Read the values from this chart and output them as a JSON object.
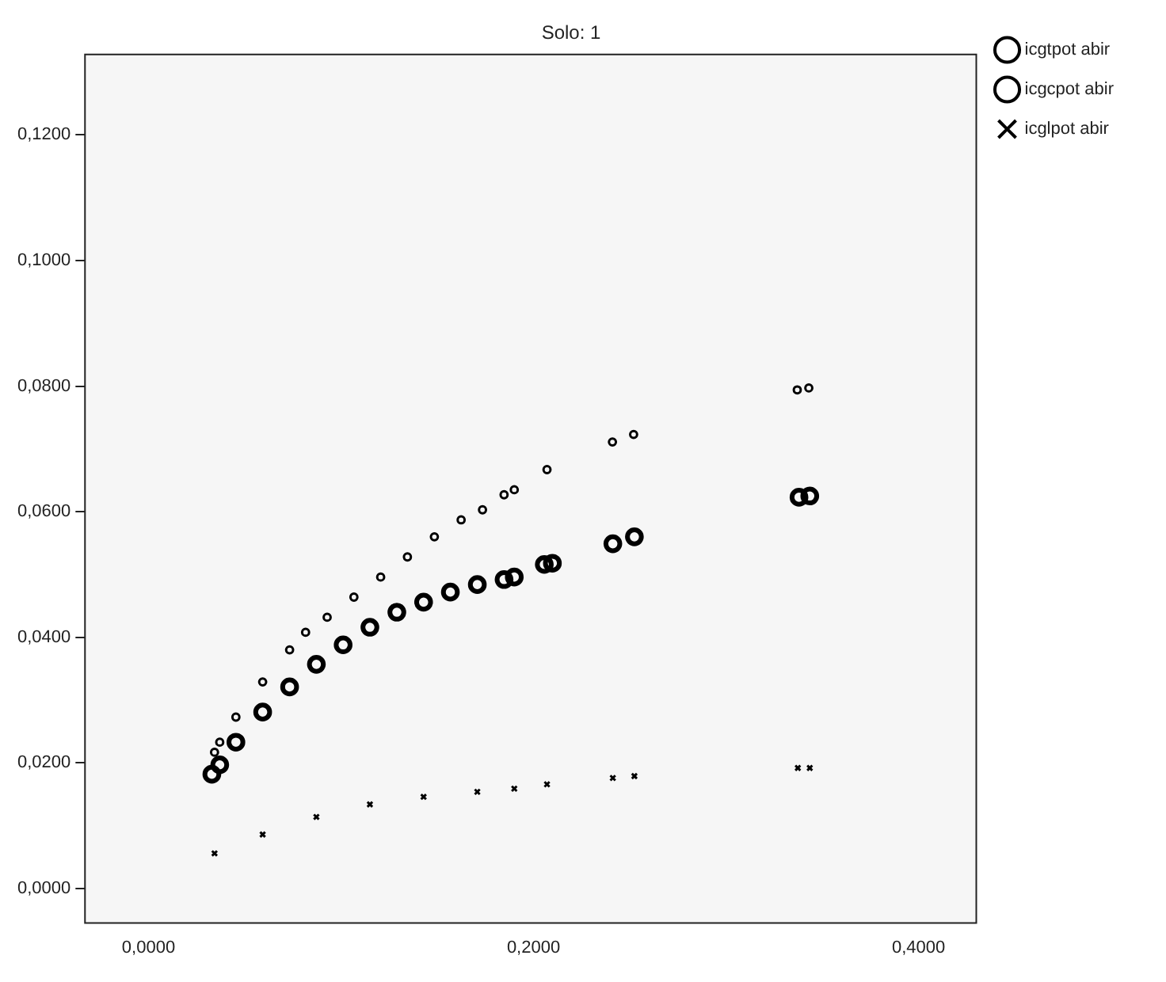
{
  "chart_data": {
    "type": "scatter",
    "title": "Solo: 1",
    "legend": "top right",
    "grid": false,
    "xlim": [
      -0.033,
      0.43
    ],
    "ylim": [
      -0.0055,
      0.1328
    ],
    "xticks": [
      {
        "value": 0,
        "label": "0,0000"
      },
      {
        "value": 0.2,
        "label": "0,2000"
      },
      {
        "value": 0.4,
        "label": "0,4000"
      }
    ],
    "yticks": [
      {
        "value": 0,
        "label": "0,0000"
      },
      {
        "value": 0.02,
        "label": "0,0200"
      },
      {
        "value": 0.04,
        "label": "0,0400"
      },
      {
        "value": 0.06,
        "label": "0,0600"
      },
      {
        "value": 0.08,
        "label": "0,0800"
      },
      {
        "value": 0.1,
        "label": "0,1000"
      },
      {
        "value": 0.12,
        "label": "0,1200"
      }
    ],
    "series": [
      {
        "name": "icgtpot abir",
        "color": "#000000",
        "marker": "circle",
        "x": [
          0.0343,
          0.037,
          0.0454,
          0.0593,
          0.0733,
          0.0816,
          0.0928,
          0.1067,
          0.1206,
          0.1345,
          0.1485,
          0.1624,
          0.1735,
          0.1847,
          0.19,
          0.207,
          0.241,
          0.252,
          0.337,
          0.343
        ],
        "values": [
          0.0217,
          0.0233,
          0.0273,
          0.0329,
          0.038,
          0.0408,
          0.0432,
          0.0464,
          0.0496,
          0.0528,
          0.056,
          0.0587,
          0.0603,
          0.0627,
          0.0635,
          0.0667,
          0.0711,
          0.0723,
          0.0794,
          0.0797
        ]
      },
      {
        "name": "icgcpot abir",
        "color": "#000000",
        "marker": "circle",
        "x": [
          0.0329,
          0.037,
          0.0454,
          0.0593,
          0.0733,
          0.0872,
          0.1011,
          0.115,
          0.129,
          0.1429,
          0.1568,
          0.1708,
          0.1847,
          0.19,
          0.2056,
          0.2098,
          0.2412,
          0.2524,
          0.3379,
          0.3435
        ],
        "values": [
          0.0182,
          0.0197,
          0.0233,
          0.0281,
          0.0321,
          0.0357,
          0.0388,
          0.0416,
          0.044,
          0.0456,
          0.0472,
          0.0484,
          0.0492,
          0.0496,
          0.0516,
          0.0518,
          0.0549,
          0.056,
          0.0623,
          0.0625
        ]
      },
      {
        "name": "icglpot abir",
        "color": "#000000",
        "marker": "cross",
        "x": [
          0.0343,
          0.0593,
          0.0872,
          0.115,
          0.1429,
          0.1708,
          0.19,
          0.207,
          0.2412,
          0.2524,
          0.3373,
          0.3435
        ],
        "values": [
          0.0056,
          0.0086,
          0.0114,
          0.0134,
          0.0146,
          0.0154,
          0.0159,
          0.0166,
          0.0176,
          0.0179,
          0.0192,
          0.0192
        ]
      }
    ]
  }
}
